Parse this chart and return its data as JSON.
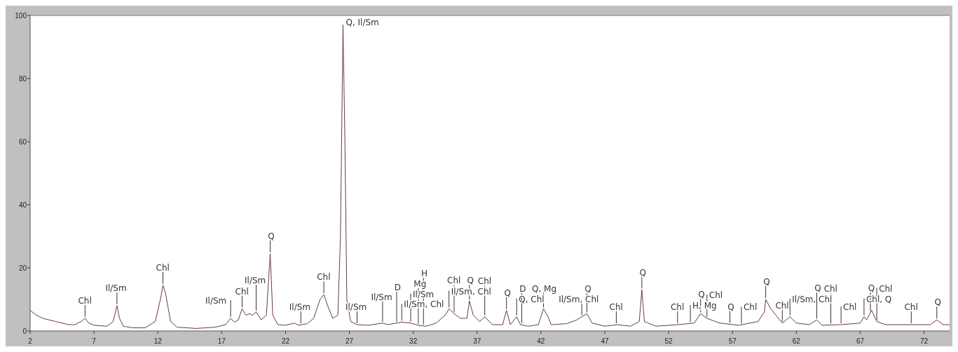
{
  "chart_data": {
    "type": "line",
    "xlim": [
      2,
      74
    ],
    "ylim": [
      0,
      100
    ],
    "xticks": [
      2,
      7,
      12,
      17,
      22,
      27,
      32,
      37,
      42,
      47,
      52,
      57,
      62,
      67,
      72
    ],
    "yticks": [
      0,
      20,
      40,
      60,
      80,
      100
    ],
    "grid": false,
    "marker": "none",
    "line_style": "solid",
    "series": [
      {
        "color": "#6b3a3a",
        "x": [
          2,
          2.5,
          3,
          4,
          5,
          5.5,
          6,
          6.3,
          6.6,
          7,
          8,
          8.5,
          8.8,
          9,
          9.3,
          10,
          11,
          11.8,
          12.2,
          12.4,
          12.6,
          13,
          13.5,
          15,
          16.5,
          17.3,
          17.7,
          18,
          18.3,
          18.6,
          18.9,
          19.2,
          19.4,
          19.7,
          20.1,
          20.5,
          20.8,
          21,
          21.4,
          22,
          22.7,
          23,
          23.7,
          24.2,
          24.7,
          25,
          25.3,
          25.7,
          26.1,
          26.3,
          26.5,
          26.65,
          26.8,
          27.1,
          27.6,
          28.5,
          29.6,
          30,
          31.1,
          31.8,
          32.4,
          33,
          33.8,
          34.5,
          34.8,
          35.2,
          35.7,
          36.2,
          36.4,
          36.7,
          37.2,
          37.6,
          38.2,
          39,
          39.3,
          39.6,
          40.1,
          40.4,
          41,
          41.8,
          42.2,
          42.5,
          42.8,
          44,
          44.8,
          45.2,
          45.6,
          46,
          47,
          48,
          49,
          49.7,
          49.9,
          50.1,
          51,
          52.7,
          54,
          54.5,
          55,
          56,
          57.5,
          59,
          59.5,
          59.6,
          60,
          60.4,
          60.9,
          61.5,
          62,
          63,
          63.6,
          64,
          65.5,
          67,
          67.3,
          67.5,
          67.9,
          68.3,
          69,
          71,
          72.5,
          73,
          73.5,
          74
        ],
        "values": [
          6.5,
          5,
          4,
          3,
          2,
          2,
          3,
          4,
          2.5,
          1.8,
          1.5,
          3,
          8,
          4,
          1.5,
          1,
          1,
          3,
          10,
          14.5,
          12,
          3,
          1.2,
          0.8,
          1.2,
          2,
          4,
          2.8,
          3.5,
          7,
          5,
          5.5,
          5,
          6,
          3.5,
          5,
          24.5,
          5,
          2,
          1.8,
          2.5,
          1.8,
          2.3,
          4,
          10,
          11.5,
          8,
          4,
          5,
          30,
          97,
          60,
          10,
          3,
          2,
          1.8,
          2.5,
          2,
          2.8,
          2.5,
          1.8,
          1.5,
          2.5,
          5,
          7,
          5.5,
          4,
          4,
          9.5,
          5,
          3,
          4.5,
          2,
          2,
          6.5,
          2,
          4.5,
          2,
          1.5,
          2,
          7,
          5,
          2,
          2.3,
          3.5,
          4.5,
          5.5,
          2.5,
          1.5,
          2,
          1.5,
          3,
          13,
          3,
          1.5,
          2,
          2.5,
          5.5,
          4,
          2.5,
          1.8,
          3,
          6,
          10,
          7,
          5,
          2.5,
          4.5,
          2.5,
          2,
          3.5,
          1.8,
          2,
          2.5,
          4.5,
          3.5,
          6.5,
          3,
          2,
          2,
          2,
          3.5,
          2,
          2
        ]
      }
    ],
    "annotations": [
      {
        "text": "Chl",
        "x": 6.3,
        "y": 4
      },
      {
        "text": "Il/Sm",
        "x": 8.8,
        "y": 8
      },
      {
        "text": "Chl",
        "x": 12.4,
        "y": 14.5
      },
      {
        "text": "Il/Sm",
        "x": 17.7,
        "y": 4
      },
      {
        "text": "Chl",
        "x": 18.6,
        "y": 7
      },
      {
        "text": "Il/Sm",
        "x": 19.7,
        "y": 6
      },
      {
        "text": "Q",
        "x": 20.8,
        "y": 24.5
      },
      {
        "text": "Il/Sm",
        "x": 23.2,
        "y": 2
      },
      {
        "text": "Chl",
        "x": 25,
        "y": 11.5
      },
      {
        "text": "Q, Il/Sm",
        "x": 26.5,
        "y": 97
      },
      {
        "text": "Il/Sm",
        "x": 27.6,
        "y": 2
      },
      {
        "text": "Il/Sm",
        "x": 29.6,
        "y": 2.5
      },
      {
        "text": "D",
        "x": 30.7,
        "y": 2.5
      },
      {
        "text": "Il/Sm, Chl",
        "x": 31.1,
        "y": 2.8
      },
      {
        "text": "Il/Sm",
        "x": 31.8,
        "y": 2.5
      },
      {
        "text": "Mg",
        "x": 32.4,
        "y": 1.8
      },
      {
        "text": "H",
        "x": 32.8,
        "y": 1.6
      },
      {
        "text": "Il/Sm, Chl",
        "x": 34.8,
        "y": 7
      },
      {
        "text": "Chl",
        "x": 35.2,
        "y": 5.5
      },
      {
        "text": "Q",
        "x": 36.4,
        "y": 9.5
      },
      {
        "text": "Chl",
        "x": 37.6,
        "y": 4.5
      },
      {
        "text": "Q",
        "x": 39.3,
        "y": 6.5
      },
      {
        "text": "Q, Chl",
        "x": 40.1,
        "y": 4.5
      },
      {
        "text": "D",
        "x": 40.5,
        "y": 2
      },
      {
        "text": "Q, Mg",
        "x": 42.2,
        "y": 7
      },
      {
        "text": "Il/Sm, Chl",
        "x": 45.2,
        "y": 4.5
      },
      {
        "text": "Q",
        "x": 45.6,
        "y": 5.5
      },
      {
        "text": "Chl",
        "x": 47.9,
        "y": 2
      },
      {
        "text": "Q",
        "x": 49.9,
        "y": 13
      },
      {
        "text": "Chl",
        "x": 52.7,
        "y": 2
      },
      {
        "text": "H, Mg",
        "x": 53.7,
        "y": 2.4
      },
      {
        "text": "Q",
        "x": 54.5,
        "y": 5.5
      },
      {
        "text": "Chl",
        "x": 55,
        "y": 4
      },
      {
        "text": "Q",
        "x": 56.8,
        "y": 2.1
      },
      {
        "text": "Chl",
        "x": 57.7,
        "y": 1.9
      },
      {
        "text": "Q",
        "x": 59.6,
        "y": 10
      },
      {
        "text": "Chl",
        "x": 60.9,
        "y": 2.5
      },
      {
        "text": "Il/Sm, Chl",
        "x": 61.5,
        "y": 4.5
      },
      {
        "text": "Q",
        "x": 63.6,
        "y": 3.5
      },
      {
        "text": "Chl",
        "x": 64.7,
        "y": 1.9
      },
      {
        "text": "Chl",
        "x": 65.5,
        "y": 2
      },
      {
        "text": "Chl, Q",
        "x": 67.3,
        "y": 4.5
      },
      {
        "text": "Q",
        "x": 67.8,
        "y": 5.8
      },
      {
        "text": "Chl",
        "x": 68.3,
        "y": 3
      },
      {
        "text": "Chl",
        "x": 71,
        "y": 2
      },
      {
        "text": "Q",
        "x": 73,
        "y": 3.5
      }
    ]
  }
}
